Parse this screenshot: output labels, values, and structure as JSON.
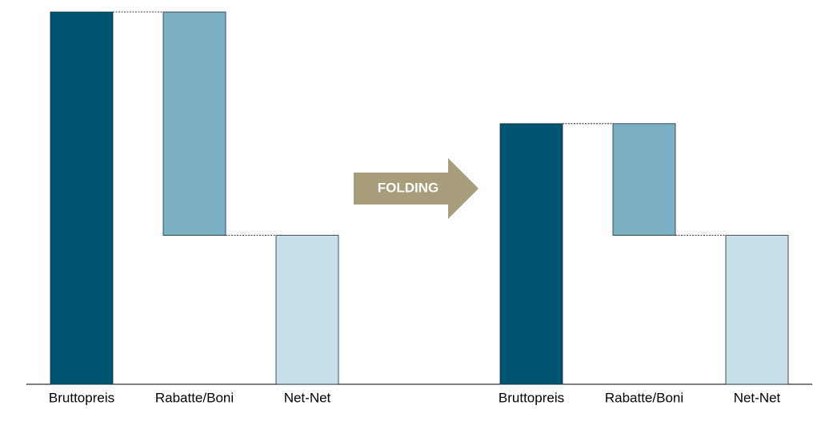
{
  "chart_data": [
    {
      "type": "waterfall",
      "categories": [
        "Bruttopreis",
        "Rabatte/Boni",
        "Net-Net"
      ],
      "values": [
        100,
        60,
        40
      ],
      "colors": [
        "#005473",
        "#7aafc4",
        "#c9e0e8"
      ],
      "ylim": [
        0,
        100
      ]
    },
    {
      "type": "waterfall",
      "categories": [
        "Bruttopreis",
        "Rabatte/Boni",
        "Net-Net"
      ],
      "values": [
        70,
        30,
        40
      ],
      "colors": [
        "#005473",
        "#7aafc4",
        "#c9e0e8"
      ],
      "ylim": [
        0,
        100
      ]
    }
  ],
  "annotation": "FOLDING"
}
